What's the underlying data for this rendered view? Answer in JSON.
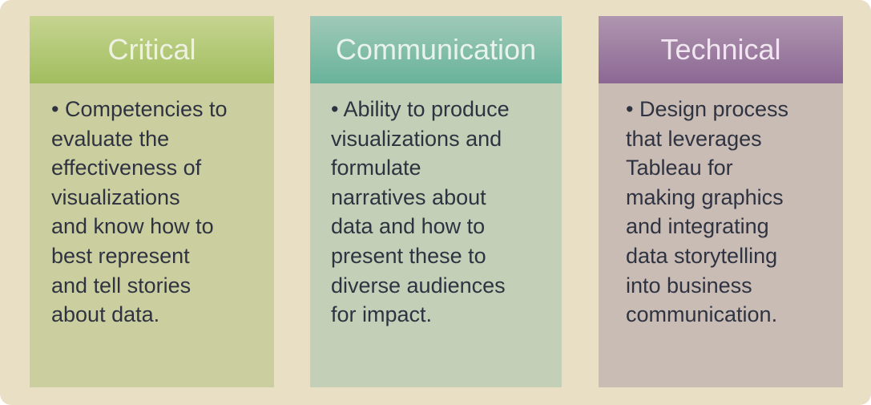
{
  "columns": [
    {
      "header": "Critical",
      "text": "• Competencies to\n   evaluate the\n   effectiveness of\n   visualizations\n   and know how to\n   best represent\n   and tell stories\n   about data."
    },
    {
      "header": "Communication",
      "text": "• Ability to produce\n   visualizations and\n   formulate\n   narratives about\n   data and how to\n   present these to\n   diverse audiences\n   for impact."
    },
    {
      "header": "Technical",
      "text": "• Design process\n   that leverages\n   Tableau for\n   making graphics\n   and integrating\n   data storytelling\n   into business\n   communication."
    }
  ],
  "colors": {
    "background": "#e8dfc5",
    "critical_header": "#a1be5f",
    "communication_header": "#69b39b",
    "technical_header": "#8c6894",
    "body_text": "#2f3341"
  }
}
